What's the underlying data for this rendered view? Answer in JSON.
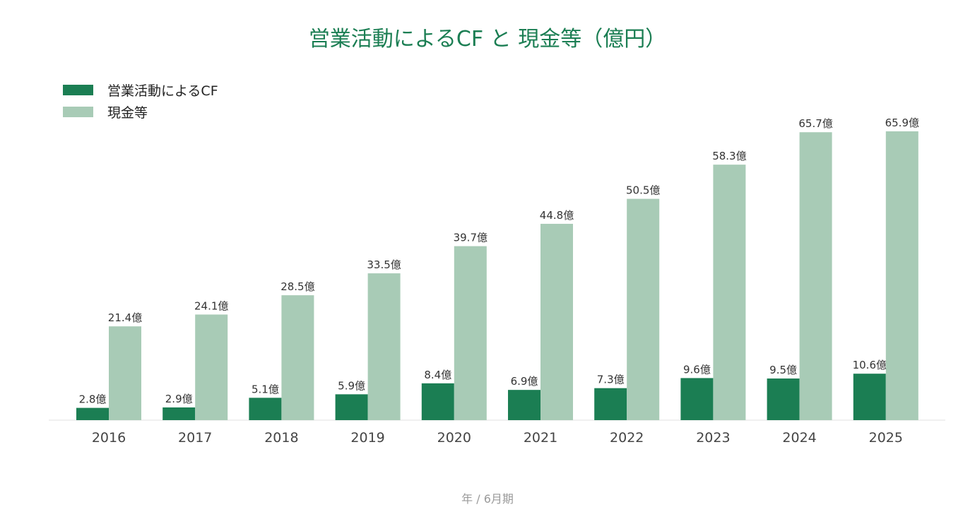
{
  "chart_data": {
    "type": "bar",
    "title": "営業活動によるCF と 現金等（億円）",
    "xlabel": "年 / 6月期",
    "ylabel": "",
    "value_suffix": "億",
    "categories": [
      "2016",
      "2017",
      "2018",
      "2019",
      "2020",
      "2021",
      "2022",
      "2023",
      "2024",
      "2025"
    ],
    "series": [
      {
        "name": "営業活動によるCF",
        "color": "#1b7e53",
        "values": [
          2.8,
          2.9,
          5.1,
          5.9,
          8.4,
          6.9,
          7.3,
          9.6,
          9.5,
          10.6
        ]
      },
      {
        "name": "現金等",
        "color": "#a8cbb6",
        "values": [
          21.4,
          24.1,
          28.5,
          33.5,
          39.7,
          44.8,
          50.5,
          58.3,
          65.7,
          65.9
        ]
      }
    ],
    "ylim": [
      0,
      65.9
    ],
    "grid": false,
    "legend_position": "top-left"
  }
}
